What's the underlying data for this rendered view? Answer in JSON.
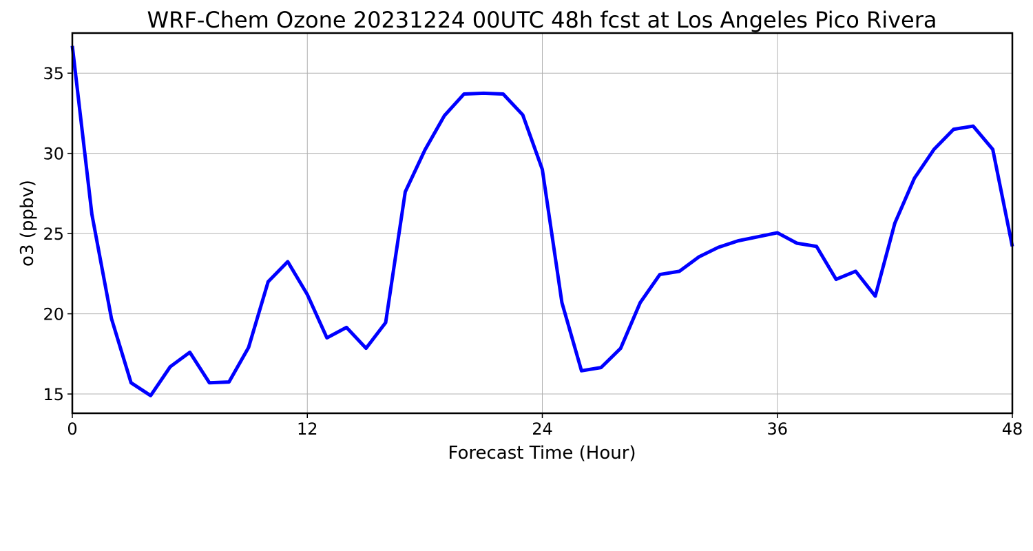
{
  "chart_data": {
    "type": "line",
    "title": "WRF-Chem Ozone  20231224 00UTC 48h fcst at Los Angeles Pico Rivera",
    "xlabel": "Forecast Time (Hour)",
    "ylabel": "o3  (ppbv)",
    "xlim": [
      0,
      48
    ],
    "ylim": [
      13.8,
      37.5
    ],
    "xticks": [
      0,
      12,
      24,
      36,
      48
    ],
    "yticks": [
      15,
      20,
      25,
      30,
      35
    ],
    "grid": true,
    "line_color": "#0000ff",
    "series": [
      {
        "x": [
          0,
          1,
          2,
          3,
          4,
          5,
          6,
          7,
          8,
          9,
          10,
          11,
          12,
          13,
          14,
          15,
          16,
          17,
          18,
          19,
          20,
          21,
          22,
          23,
          24,
          25,
          26,
          27,
          28,
          29,
          30,
          31,
          32,
          33,
          34,
          35,
          36,
          37,
          38,
          39,
          40,
          41,
          42,
          43,
          44,
          45,
          46,
          47,
          48
        ],
        "values": [
          36.7,
          26.2,
          19.7,
          15.7,
          14.9,
          16.7,
          17.6,
          15.7,
          15.75,
          17.9,
          22.0,
          23.25,
          21.2,
          18.5,
          19.15,
          17.85,
          19.45,
          27.6,
          30.2,
          32.35,
          33.7,
          33.75,
          33.7,
          32.4,
          29.0,
          20.7,
          16.45,
          16.65,
          17.85,
          20.7,
          22.45,
          22.65,
          23.55,
          24.15,
          24.55,
          24.8,
          25.05,
          24.4,
          24.2,
          22.15,
          22.65,
          21.1,
          25.65,
          28.45,
          30.25,
          31.5,
          31.7,
          30.25,
          24.2
        ]
      }
    ]
  }
}
